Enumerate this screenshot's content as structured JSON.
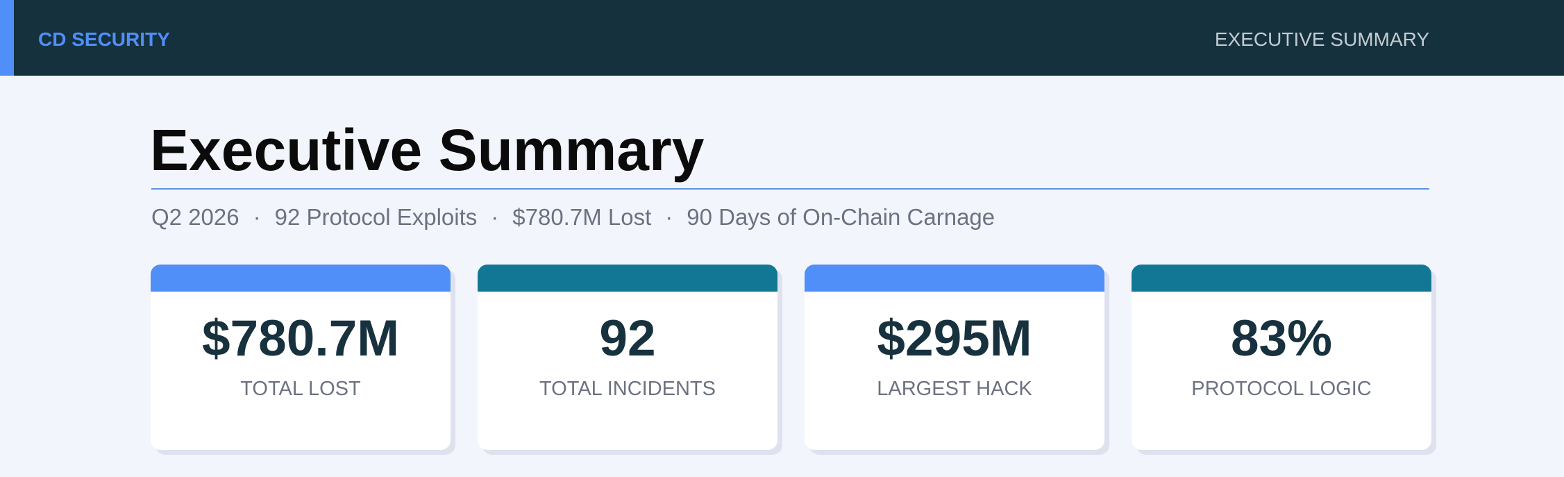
{
  "header": {
    "brand": "CD SECURITY",
    "nav": "EXECUTIVE SUMMARY"
  },
  "title": "Executive Summary",
  "subtitle": [
    "Q2 2026",
    "92 Protocol Exploits",
    "$780.7M Lost",
    "90 Days of On-Chain Carnage"
  ],
  "cards": [
    {
      "value": "$780.7M",
      "label": "TOTAL LOST"
    },
    {
      "value": "92",
      "label": "TOTAL INCIDENTS"
    },
    {
      "value": "$295M",
      "label": "LARGEST HACK"
    },
    {
      "value": "83%",
      "label": "PROTOCOL LOGIC"
    }
  ]
}
